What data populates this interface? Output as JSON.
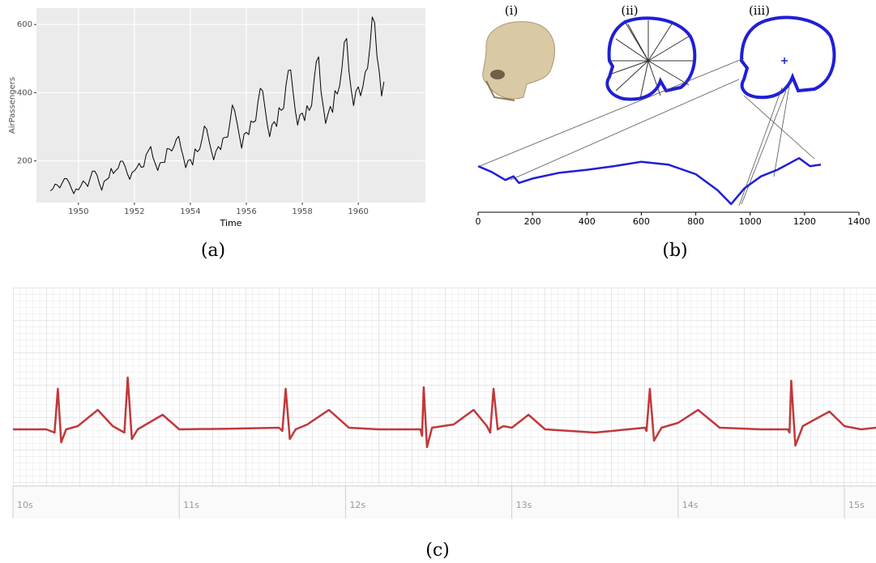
{
  "chart_data": [
    {
      "type": "line",
      "caption": "(a)",
      "xlabel": "Time",
      "ylabel": "AirPassengers",
      "color": "#000000",
      "grid": true,
      "xlim": [
        1948.5,
        1962.4
      ],
      "ylim": [
        78,
        648
      ],
      "xticks": [
        1950,
        1952,
        1954,
        1956,
        1958,
        1960
      ],
      "yticks": [
        200,
        400,
        600
      ],
      "x": [
        1949,
        1949.083,
        1949.167,
        1949.25,
        1949.333,
        1949.417,
        1949.5,
        1949.583,
        1949.667,
        1949.75,
        1949.833,
        1949.917,
        1950,
        1950.083,
        1950.167,
        1950.25,
        1950.333,
        1950.417,
        1950.5,
        1950.583,
        1950.667,
        1950.75,
        1950.833,
        1950.917,
        1951,
        1951.083,
        1951.167,
        1951.25,
        1951.333,
        1951.417,
        1951.5,
        1951.583,
        1951.667,
        1951.75,
        1951.833,
        1951.917,
        1952,
        1952.083,
        1952.167,
        1952.25,
        1952.333,
        1952.417,
        1952.5,
        1952.583,
        1952.667,
        1952.75,
        1952.833,
        1952.917,
        1953,
        1953.083,
        1953.167,
        1953.25,
        1953.333,
        1953.417,
        1953.5,
        1953.583,
        1953.667,
        1953.75,
        1953.833,
        1953.917,
        1954,
        1954.083,
        1954.167,
        1954.25,
        1954.333,
        1954.417,
        1954.5,
        1954.583,
        1954.667,
        1954.75,
        1954.833,
        1954.917,
        1955,
        1955.083,
        1955.167,
        1955.25,
        1955.333,
        1955.417,
        1955.5,
        1955.583,
        1955.667,
        1955.75,
        1955.833,
        1955.917,
        1956,
        1956.083,
        1956.167,
        1956.25,
        1956.333,
        1956.417,
        1956.5,
        1956.583,
        1956.667,
        1956.75,
        1956.833,
        1956.917,
        1957,
        1957.083,
        1957.167,
        1957.25,
        1957.333,
        1957.417,
        1957.5,
        1957.583,
        1957.667,
        1957.75,
        1957.833,
        1957.917,
        1958,
        1958.083,
        1958.167,
        1958.25,
        1958.333,
        1958.417,
        1958.5,
        1958.583,
        1958.667,
        1958.75,
        1958.833,
        1958.917,
        1959,
        1959.083,
        1959.167,
        1959.25,
        1959.333,
        1959.417,
        1959.5,
        1959.583,
        1959.667,
        1959.75,
        1959.833,
        1959.917,
        1960,
        1960.083,
        1960.167,
        1960.25,
        1960.333,
        1960.417,
        1960.5,
        1960.583,
        1960.667,
        1960.75,
        1960.833,
        1960.917
      ],
      "values": [
        112,
        118,
        132,
        129,
        121,
        135,
        148,
        148,
        136,
        119,
        104,
        118,
        115,
        126,
        141,
        135,
        125,
        149,
        170,
        170,
        158,
        133,
        114,
        140,
        145,
        150,
        178,
        163,
        172,
        178,
        199,
        199,
        184,
        162,
        146,
        166,
        171,
        180,
        193,
        181,
        183,
        218,
        230,
        242,
        209,
        191,
        172,
        194,
        196,
        196,
        236,
        235,
        229,
        243,
        264,
        272,
        237,
        211,
        180,
        201,
        204,
        188,
        235,
        227,
        234,
        264,
        302,
        293,
        259,
        229,
        203,
        229,
        242,
        233,
        267,
        269,
        270,
        315,
        364,
        347,
        312,
        274,
        237,
        278,
        284,
        277,
        317,
        313,
        318,
        374,
        413,
        405,
        355,
        306,
        271,
        306,
        315,
        301,
        356,
        348,
        355,
        422,
        465,
        467,
        404,
        347,
        305,
        336,
        340,
        318,
        362,
        348,
        363,
        435,
        491,
        505,
        404,
        359,
        310,
        337,
        360,
        342,
        406,
        396,
        420,
        472,
        548,
        559,
        463,
        407,
        362,
        405,
        417,
        391,
        419,
        461,
        472,
        535,
        622,
        606,
        508,
        461,
        390,
        432
      ]
    },
    {
      "type": "line",
      "caption": "(b)",
      "panel_labels": [
        "(i)",
        "(ii)",
        "(iii)"
      ],
      "color": "#1f1fd6",
      "xlim": [
        0,
        1400
      ],
      "ylim": [
        0,
        100
      ],
      "xticks": [
        0,
        200,
        400,
        600,
        800,
        1000,
        1200,
        1400
      ],
      "x": [
        0,
        50,
        100,
        130,
        150,
        200,
        300,
        400,
        500,
        600,
        700,
        800,
        880,
        930,
        980,
        1040,
        1100,
        1180,
        1220,
        1260
      ],
      "values": [
        61,
        53,
        42,
        47,
        38,
        44,
        52,
        56,
        61,
        67,
        63,
        50,
        28,
        9,
        31,
        47,
        56,
        72,
        61,
        63
      ]
    },
    {
      "type": "line",
      "caption": "(c)",
      "color": "#c0393b",
      "xlim": [
        10,
        15.19
      ],
      "ylim": [
        -1.75,
        4.375
      ],
      "xticks": [
        {
          "value": 10,
          "label": "10s"
        },
        {
          "value": 11,
          "label": "11s"
        },
        {
          "value": 12,
          "label": "12s"
        },
        {
          "value": 13,
          "label": "13s"
        },
        {
          "value": 14,
          "label": "14s"
        },
        {
          "value": 15,
          "label": "15s"
        }
      ],
      "x": [
        10,
        10.2,
        10.25,
        10.27,
        10.29,
        10.32,
        10.39,
        10.51,
        10.6,
        10.67,
        10.69,
        10.715,
        10.75,
        10.8,
        10.9,
        11,
        11.3,
        11.6,
        11.62,
        11.64,
        11.665,
        11.7,
        11.77,
        11.9,
        12.02,
        12.2,
        12.45,
        12.46,
        12.47,
        12.49,
        12.52,
        12.65,
        12.77,
        12.85,
        12.87,
        12.89,
        12.915,
        12.95,
        13,
        13.1,
        13.2,
        13.5,
        13.8,
        13.81,
        13.83,
        13.855,
        13.9,
        14,
        14.12,
        14.25,
        14.5,
        14.66,
        14.67,
        14.68,
        14.705,
        14.75,
        14.91,
        15,
        15.1,
        15.19
      ],
      "values": [
        0,
        0,
        -0.1,
        1.25,
        -0.4,
        0,
        0.1,
        0.6,
        0.1,
        -0.1,
        1.6,
        -0.3,
        0,
        0.15,
        0.45,
        0,
        0.02,
        0.05,
        -0.05,
        1.25,
        -0.3,
        0,
        0.15,
        0.6,
        0.05,
        0,
        0,
        -0.2,
        1.3,
        -0.55,
        0.05,
        0.15,
        0.6,
        0.1,
        -0.1,
        1.25,
        0,
        0.1,
        0.05,
        0.45,
        0,
        -0.1,
        0.05,
        -0.05,
        1.25,
        -0.35,
        0.05,
        0.2,
        0.6,
        0.05,
        0,
        0,
        -0.1,
        1.5,
        -0.5,
        0.1,
        0.55,
        0.1,
        0,
        0.05
      ]
    }
  ]
}
